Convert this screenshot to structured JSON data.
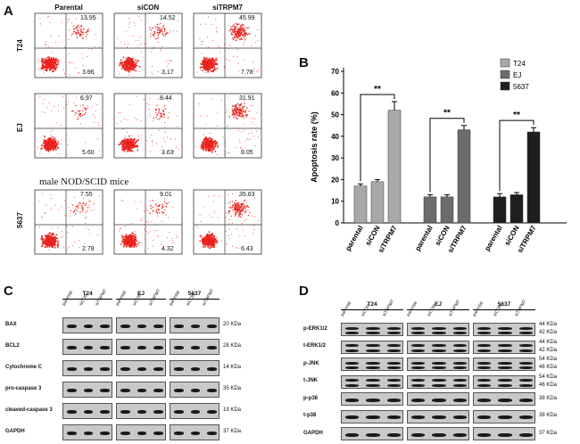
{
  "panels": {
    "a": "A",
    "b": "B",
    "c": "C",
    "d": "D"
  },
  "flow": {
    "columns": [
      "Parental",
      "siCON",
      "siTRPM7"
    ],
    "rows": [
      {
        "label": "T24",
        "values": [
          [
            "13.95",
            "3.96"
          ],
          [
            "14.52",
            "3.17"
          ],
          [
            "45.99",
            "7.78"
          ]
        ]
      },
      {
        "label": "EJ",
        "values": [
          [
            "6.97",
            "5.60"
          ],
          [
            "8.44",
            "3.63"
          ],
          [
            "31.91",
            "9.05"
          ]
        ]
      },
      {
        "label": "5637",
        "values": [
          [
            "7.55",
            "2.78"
          ],
          [
            "9.01",
            "4.32"
          ],
          [
            "35.63",
            "6.43"
          ]
        ]
      }
    ],
    "note": "male NOD/SCID mice",
    "dot_color": "#e8231e"
  },
  "chart_data": {
    "type": "bar",
    "ylabel": "Apoptosis rate (%)",
    "ylim": [
      0,
      70
    ],
    "yticks": [
      0,
      10,
      20,
      30,
      40,
      50,
      60,
      70
    ],
    "groups": [
      "T24",
      "EJ",
      "5637"
    ],
    "categories": [
      "parental",
      "siCON",
      "siTRPM7"
    ],
    "series": [
      {
        "name": "T24",
        "color": "#a9a9a9",
        "values": [
          17,
          19,
          52
        ]
      },
      {
        "name": "EJ",
        "color": "#6c6c6c",
        "values": [
          12,
          12,
          43
        ]
      },
      {
        "name": "5637",
        "color": "#1e1e1e",
        "values": [
          12,
          13,
          42
        ]
      }
    ],
    "errors": [
      [
        1,
        1,
        4
      ],
      [
        1,
        1,
        2
      ],
      [
        1.5,
        1,
        2
      ]
    ],
    "significance": "**",
    "legend_position": "top-right"
  },
  "blotC": {
    "groups": [
      "T24",
      "EJ",
      "5637"
    ],
    "lanes": [
      "parental",
      "siCON",
      "siTRPM7"
    ],
    "rows": [
      {
        "label": "BAX",
        "kda": "20 KDa"
      },
      {
        "label": "BCL2",
        "kda": "28 KDa"
      },
      {
        "label": "Cytochrome C",
        "kda": "14 KDa"
      },
      {
        "label": "pro-caspase 3",
        "kda": "35 KDa"
      },
      {
        "label": "cleaved-caspase 3",
        "kda": "19 KDa"
      },
      {
        "label": "GAPDH",
        "kda": "37 KDa"
      }
    ]
  },
  "blotD": {
    "groups": [
      "T24",
      "EJ",
      "5637"
    ],
    "lanes": [
      "parental",
      "siCON",
      "siTRPM7"
    ],
    "rows": [
      {
        "label": "p-ERK1/2",
        "kda": [
          "44 KDa",
          "42 KDa"
        ]
      },
      {
        "label": "t-ERK1/2",
        "kda": [
          "44 KDa",
          "42 KDa"
        ]
      },
      {
        "label": "p-JNK",
        "kda": [
          "54 KDa",
          "46 KDa"
        ]
      },
      {
        "label": "t-JNK",
        "kda": [
          "54 KDa",
          "46 KDa"
        ]
      },
      {
        "label": "p-p38",
        "kda": [
          "38 KDa"
        ]
      },
      {
        "label": "t-p38",
        "kda": [
          "38 KDa"
        ]
      },
      {
        "label": "GAPDH",
        "kda": [
          "37 KDa"
        ]
      }
    ]
  }
}
